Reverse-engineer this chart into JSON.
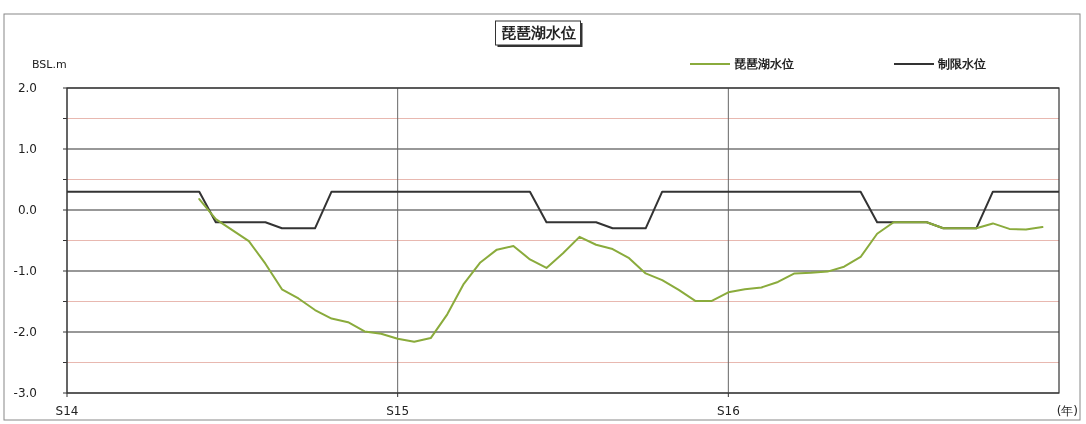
{
  "chart_data": {
    "type": "line",
    "title": "琵琶湖水位",
    "xlabel": "(年)",
    "ylabel": "BSL.m",
    "categories": [
      "S14",
      null,
      null,
      null,
      null,
      null,
      null,
      null,
      null,
      null,
      null,
      null,
      null,
      null,
      null,
      null,
      null,
      null,
      null,
      null,
      "S15",
      null,
      null,
      null,
      null,
      null,
      null,
      null,
      null,
      null,
      null,
      null,
      null,
      null,
      null,
      null,
      null,
      null,
      null,
      null,
      "S16",
      null,
      null,
      null,
      null,
      null,
      null,
      null,
      null,
      null,
      null,
      null,
      null,
      null,
      null,
      null,
      null,
      null,
      null,
      null,
      null
    ],
    "ylim": [
      -3,
      2
    ],
    "yticks": [
      {
        "value": -3,
        "label": "-3.0"
      },
      {
        "value": -2.5,
        "label": null
      },
      {
        "value": -2,
        "label": "-2.0"
      },
      {
        "value": -1.5,
        "label": null
      },
      {
        "value": -1,
        "label": "-1.0"
      },
      {
        "value": -0.5,
        "label": null
      },
      {
        "value": 0,
        "label": "0.0"
      },
      {
        "value": 0.5,
        "label": null
      },
      {
        "value": 1,
        "label": "1.0"
      },
      {
        "value": 1.5,
        "label": null
      },
      {
        "value": 2,
        "label": "2.0"
      }
    ],
    "grid": true,
    "legend": "top right",
    "marker": "none",
    "line_style": "solid",
    "series": [
      {
        "name": "琵琶湖水位",
        "color": "#8aab3c",
        "values": [
          null,
          null,
          null,
          null,
          null,
          null,
          null,
          null,
          0.18,
          -0.15,
          -0.33,
          -0.51,
          -0.88,
          -1.3,
          -1.45,
          -1.64,
          -1.78,
          -1.84,
          -1.99,
          -2.03,
          -2.11,
          -2.16,
          -2.1,
          -1.71,
          -1.21,
          -0.86,
          -0.65,
          -0.59,
          -0.81,
          -0.95,
          -0.71,
          -0.44,
          -0.57,
          -0.64,
          -0.79,
          -1.04,
          -1.15,
          -1.31,
          -1.49,
          -1.49,
          -1.35,
          -1.3,
          -1.27,
          -1.18,
          -1.04,
          -1.03,
          -1.01,
          -0.93,
          -0.77,
          -0.39,
          -0.2,
          -0.2,
          -0.2,
          -0.3,
          -0.3,
          -0.3,
          -0.22,
          -0.31,
          -0.32,
          -0.28,
          null
        ]
      },
      {
        "name": "制限水位",
        "color": "#333333",
        "values": [
          0.3,
          0.3,
          0.3,
          0.3,
          0.3,
          0.3,
          0.3,
          0.3,
          0.3,
          -0.2,
          -0.2,
          -0.2,
          -0.2,
          -0.3,
          -0.3,
          -0.3,
          0.3,
          0.3,
          0.3,
          0.3,
          0.3,
          0.3,
          0.3,
          0.3,
          0.3,
          0.3,
          0.3,
          0.3,
          0.3,
          -0.2,
          -0.2,
          -0.2,
          -0.2,
          -0.3,
          -0.3,
          -0.3,
          0.3,
          0.3,
          0.3,
          0.3,
          0.3,
          0.3,
          0.3,
          0.3,
          0.3,
          0.3,
          0.3,
          0.3,
          0.3,
          -0.2,
          -0.2,
          -0.2,
          -0.2,
          -0.3,
          -0.3,
          -0.3,
          0.3,
          0.3,
          0.3,
          0.3,
          0.3
        ]
      }
    ]
  }
}
